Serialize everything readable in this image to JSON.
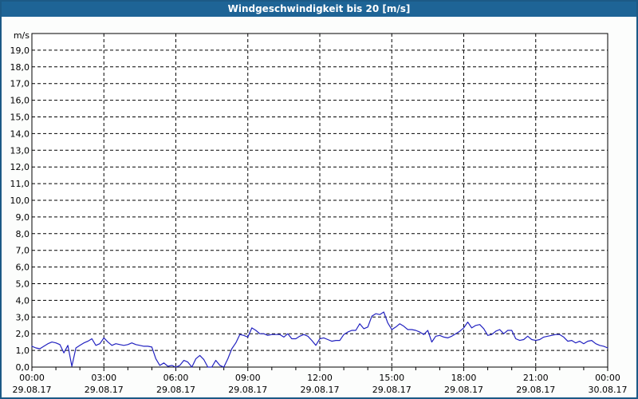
{
  "window": {
    "title": "Windgeschwindigkeit bis 20 [m/s]"
  },
  "colors": {
    "titlebar_bg": "#1e6496",
    "titlebar_text": "#ffffff",
    "frame_border": "#1c5a86",
    "background": "#fcfdfc",
    "plot_background": "#ffffff",
    "plot_border": "#000000",
    "grid": "#000000",
    "label_text": "#000000",
    "line": "#2222c0"
  },
  "chart_data": {
    "type": "line",
    "title": "Windgeschwindigkeit bis 20 [m/s]",
    "unit_label": "m/s",
    "ylabel": "m/s",
    "xlabel": "",
    "ylim": [
      0,
      20
    ],
    "y_tick_step": 1,
    "y_tick_labels": [
      "0,0",
      "1,0",
      "2,0",
      "3,0",
      "4,0",
      "5,0",
      "6,0",
      "7,0",
      "8,0",
      "9,0",
      "10,0",
      "11,0",
      "12,0",
      "13,0",
      "14,0",
      "15,0",
      "16,0",
      "17,0",
      "18,0",
      "19,0"
    ],
    "x_range_hours": [
      0,
      24
    ],
    "x_major_tick_hours": 3,
    "x_minor_tick_hours": 1,
    "grid": "dashed",
    "legend": "none",
    "x_ticks": [
      {
        "time": "00:00",
        "date": "29.08.17"
      },
      {
        "time": "03:00",
        "date": "29.08.17"
      },
      {
        "time": "06:00",
        "date": "29.08.17"
      },
      {
        "time": "09:00",
        "date": "29.08.17"
      },
      {
        "time": "12:00",
        "date": "29.08.17"
      },
      {
        "time": "15:00",
        "date": "29.08.17"
      },
      {
        "time": "18:00",
        "date": "29.08.17"
      },
      {
        "time": "21:00",
        "date": "29.08.17"
      },
      {
        "time": "00:00",
        "date": "30.08.17"
      }
    ],
    "series": [
      {
        "name": "Windgeschwindigkeit",
        "sample_interval_minutes": 10,
        "start_time": "29.08.17 00:00",
        "values_mps": [
          1.25,
          1.15,
          1.1,
          1.25,
          1.4,
          1.5,
          1.45,
          1.35,
          0.85,
          1.3,
          0.05,
          1.15,
          1.3,
          1.45,
          1.55,
          1.7,
          1.3,
          1.4,
          1.75,
          1.5,
          1.3,
          1.4,
          1.35,
          1.3,
          1.35,
          1.45,
          1.35,
          1.3,
          1.25,
          1.25,
          1.2,
          0.5,
          0.1,
          0.25,
          0.05,
          0.1,
          0.0,
          0.1,
          0.4,
          0.3,
          0.0,
          0.5,
          0.7,
          0.45,
          0.0,
          0.0,
          0.4,
          0.1,
          0.0,
          0.5,
          1.1,
          1.45,
          1.95,
          1.9,
          1.8,
          2.35,
          2.2,
          2.0,
          2.0,
          1.9,
          1.95,
          1.95,
          1.95,
          1.8,
          2.0,
          1.7,
          1.7,
          1.85,
          1.95,
          1.85,
          1.6,
          1.3,
          1.7,
          1.75,
          1.65,
          1.55,
          1.6,
          1.6,
          1.95,
          2.1,
          2.2,
          2.2,
          2.6,
          2.3,
          2.4,
          3.05,
          3.2,
          3.15,
          3.3,
          2.65,
          2.25,
          2.4,
          2.6,
          2.45,
          2.25,
          2.25,
          2.2,
          2.1,
          1.95,
          2.2,
          1.5,
          1.85,
          1.9,
          1.8,
          1.75,
          1.85,
          2.0,
          2.15,
          2.35,
          2.7,
          2.35,
          2.5,
          2.55,
          2.3,
          1.9,
          1.95,
          2.15,
          2.25,
          2.0,
          2.2,
          2.2,
          1.7,
          1.6,
          1.65,
          1.85,
          1.65,
          1.6,
          1.65,
          1.8,
          1.85,
          1.9,
          1.95,
          1.95,
          1.8,
          1.55,
          1.6,
          1.45,
          1.55,
          1.4,
          1.55,
          1.6,
          1.4,
          1.3,
          1.25,
          1.15
        ]
      }
    ]
  }
}
